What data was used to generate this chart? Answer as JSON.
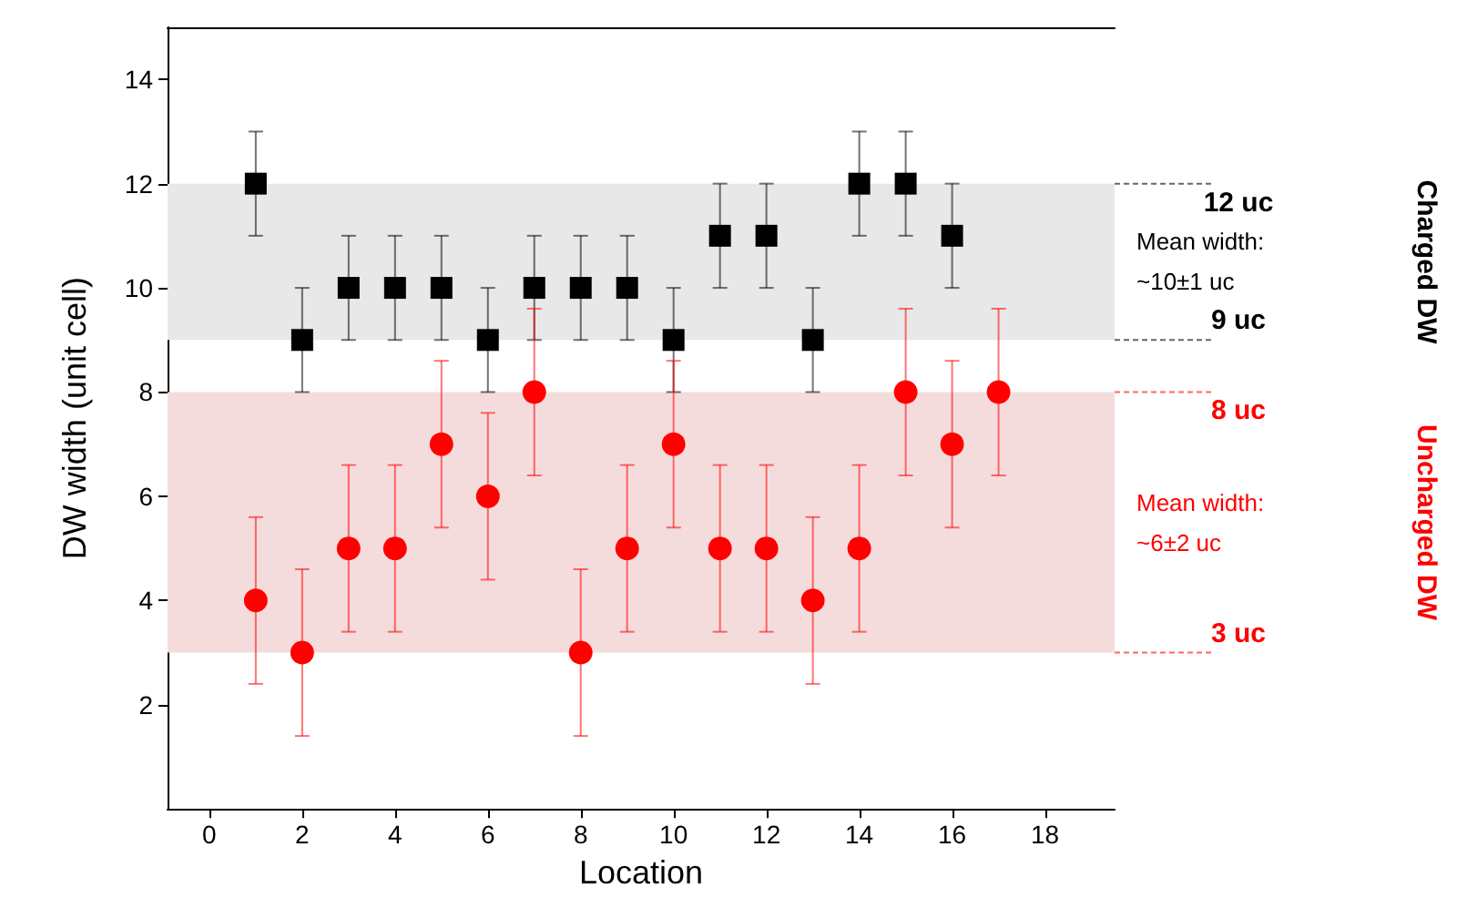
{
  "chart_data": {
    "type": "scatter",
    "xlabel": "Location",
    "ylabel": "DW width (unit cell)",
    "xlim": [
      -0.9,
      19.5
    ],
    "ylim": [
      0,
      15
    ],
    "xticks": [
      0,
      2,
      4,
      6,
      8,
      10,
      12,
      14,
      16,
      18
    ],
    "yticks": [
      2,
      4,
      6,
      8,
      10,
      12,
      14
    ],
    "grid": false,
    "series": [
      {
        "color": "#000000",
        "marker": "square",
        "x": [
          1,
          2,
          3,
          4,
          5,
          6,
          7,
          8,
          9,
          10,
          11,
          12,
          13,
          14,
          15,
          16
        ],
        "values": [
          12,
          9,
          10,
          10,
          10,
          9,
          10,
          10,
          10,
          9,
          11,
          11,
          9,
          12,
          12,
          11
        ],
        "errors": [
          1,
          1,
          1,
          1,
          1,
          1,
          1,
          1,
          1,
          1,
          1,
          1,
          1,
          1,
          1,
          1
        ]
      },
      {
        "color": "#ff0000",
        "marker": "circle",
        "x": [
          1,
          2,
          3,
          4,
          5,
          6,
          7,
          8,
          9,
          10,
          11,
          12,
          13,
          14,
          15,
          16,
          17
        ],
        "values": [
          4,
          3,
          5,
          5,
          7,
          6,
          8,
          3,
          5,
          7,
          5,
          5,
          4,
          5,
          8,
          7,
          8
        ],
        "errors": [
          1.6,
          1.6,
          1.6,
          1.6,
          1.6,
          1.6,
          1.6,
          1.6,
          1.6,
          1.6,
          1.6,
          1.6,
          1.6,
          1.6,
          1.6,
          1.6,
          1.6
        ]
      }
    ],
    "bands": [
      {
        "axis": "y",
        "from": 9,
        "to": 12,
        "label": "Mean width:\n~10±1 uc",
        "color": "#e8e8e8"
      },
      {
        "axis": "y",
        "from": 3,
        "to": 8,
        "label": "Mean width:\n~6±2 uc",
        "color": "#f5dcdc"
      }
    ],
    "ref_lines": [
      {
        "axis": "y",
        "value": 12,
        "label": "12 uc",
        "color": "#000000",
        "line_style": "dashed"
      },
      {
        "axis": "y",
        "value": 9,
        "label": "9 uc",
        "color": "#000000",
        "line_style": "dashed"
      },
      {
        "axis": "y",
        "value": 8,
        "label": "8 uc",
        "color": "#ff0000",
        "line_style": "dashed"
      },
      {
        "axis": "y",
        "value": 3,
        "label": "3 uc",
        "color": "#ff0000",
        "line_style": "dashed"
      }
    ],
    "annotations": [
      "Charged DW",
      "Uncharged DW"
    ]
  }
}
